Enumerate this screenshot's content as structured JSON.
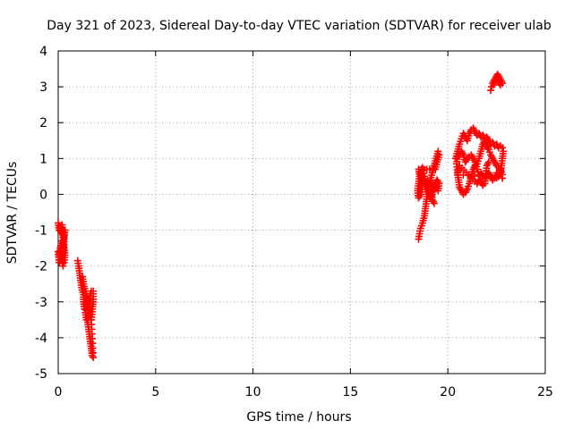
{
  "chart_data": {
    "type": "scatter",
    "title": "Day 321 of 2023, Sidereal Day-to-day VTEC variation (SDTVAR) for receiver ulab",
    "xlabel": "GPS time / hours",
    "ylabel": "SDTVAR / TECUs",
    "xlim": [
      0,
      25
    ],
    "ylim": [
      -5,
      4
    ],
    "xticks": [
      0,
      5,
      10,
      15,
      20,
      25
    ],
    "yticks": [
      -5,
      -4,
      -3,
      -2,
      -1,
      0,
      1,
      2,
      3,
      4
    ],
    "xtick_labels": [
      "0",
      "5",
      "10",
      "15",
      "20",
      "25"
    ],
    "ytick_labels": [
      "-5",
      "-4",
      "-3",
      "-2",
      "-1",
      "0",
      "1",
      "2",
      "3",
      "4"
    ],
    "grid": true,
    "marker": "plus",
    "series": [
      {
        "name": "SDTVAR",
        "color": "#ff0000",
        "segments": [
          [
            [
              0.0,
              -0.8
            ],
            [
              0.05,
              -1.0
            ],
            [
              0.1,
              -0.9
            ],
            [
              0.15,
              -1.1
            ],
            [
              0.2,
              -0.85
            ],
            [
              0.25,
              -1.2
            ],
            [
              0.3,
              -1.0
            ],
            [
              0.3,
              -1.4
            ],
            [
              0.25,
              -1.6
            ],
            [
              0.2,
              -1.8
            ],
            [
              0.25,
              -2.0
            ],
            [
              0.3,
              -1.9
            ],
            [
              0.35,
              -1.7
            ],
            [
              0.3,
              -1.5
            ],
            [
              0.2,
              -1.3
            ],
            [
              0.1,
              -1.5
            ],
            [
              0.05,
              -1.7
            ],
            [
              0.0,
              -1.6
            ],
            [
              0.05,
              -1.9
            ],
            [
              0.15,
              -1.7
            ],
            [
              0.2,
              -1.5
            ],
            [
              0.3,
              -1.2
            ],
            [
              0.35,
              -1.0
            ]
          ],
          [
            [
              1.0,
              -1.85
            ],
            [
              1.05,
              -2.0
            ],
            [
              1.1,
              -2.2
            ],
            [
              1.15,
              -2.4
            ],
            [
              1.2,
              -2.6
            ],
            [
              1.3,
              -2.8
            ],
            [
              1.3,
              -3.0
            ],
            [
              1.35,
              -3.2
            ],
            [
              1.4,
              -3.0
            ],
            [
              1.45,
              -2.9
            ],
            [
              1.5,
              -3.1
            ],
            [
              1.55,
              -3.3
            ],
            [
              1.5,
              -3.5
            ],
            [
              1.55,
              -3.7
            ],
            [
              1.6,
              -3.9
            ],
            [
              1.65,
              -4.1
            ],
            [
              1.7,
              -4.3
            ],
            [
              1.75,
              -4.5
            ],
            [
              1.8,
              -4.55
            ],
            [
              1.7,
              -3.5
            ],
            [
              1.75,
              -3.2
            ],
            [
              1.8,
              -3.0
            ],
            [
              1.8,
              -2.7
            ],
            [
              1.7,
              -2.7
            ],
            [
              1.6,
              -2.9
            ],
            [
              1.5,
              -3.0
            ],
            [
              1.4,
              -3.3
            ],
            [
              1.45,
              -3.5
            ],
            [
              1.6,
              -3.4
            ],
            [
              1.7,
              -3.2
            ],
            [
              1.4,
              -2.7
            ],
            [
              1.3,
              -2.5
            ],
            [
              1.25,
              -2.3
            ]
          ],
          [
            [
              18.5,
              -1.25
            ],
            [
              18.55,
              -1.1
            ],
            [
              18.6,
              -0.95
            ],
            [
              18.7,
              -0.8
            ],
            [
              18.8,
              -0.6
            ],
            [
              18.85,
              -0.4
            ],
            [
              18.9,
              -0.2
            ],
            [
              18.95,
              0.0
            ],
            [
              19.0,
              0.2
            ],
            [
              19.1,
              0.4
            ],
            [
              19.2,
              0.6
            ],
            [
              19.3,
              0.8
            ],
            [
              19.4,
              1.0
            ],
            [
              19.5,
              1.2
            ],
            [
              19.55,
              1.1
            ],
            [
              19.45,
              0.9
            ],
            [
              19.35,
              0.7
            ],
            [
              18.5,
              0.7
            ],
            [
              18.55,
              0.5
            ],
            [
              18.5,
              0.3
            ],
            [
              18.45,
              0.1
            ],
            [
              18.5,
              -0.1
            ],
            [
              18.6,
              0.0
            ],
            [
              18.7,
              0.2
            ],
            [
              18.65,
              0.4
            ],
            [
              18.6,
              0.6
            ],
            [
              18.7,
              0.75
            ],
            [
              18.8,
              0.5
            ],
            [
              18.9,
              0.3
            ],
            [
              19.0,
              0.1
            ],
            [
              19.1,
              -0.1
            ],
            [
              19.2,
              0.0
            ],
            [
              19.3,
              0.2
            ],
            [
              19.4,
              0.25
            ],
            [
              19.5,
              0.1
            ],
            [
              19.55,
              0.3
            ],
            [
              19.45,
              0.4
            ],
            [
              19.35,
              0.3
            ],
            [
              19.25,
              0.2
            ],
            [
              19.15,
              0.35
            ],
            [
              19.2,
              -0.15
            ],
            [
              19.3,
              -0.25
            ]
          ],
          [
            [
              20.4,
              1.0
            ],
            [
              20.5,
              1.2
            ],
            [
              20.6,
              1.4
            ],
            [
              20.7,
              1.55
            ],
            [
              20.8,
              1.7
            ],
            [
              20.9,
              1.6
            ],
            [
              21.0,
              1.5
            ],
            [
              21.1,
              1.7
            ],
            [
              21.2,
              1.8
            ],
            [
              21.3,
              1.85
            ],
            [
              21.4,
              1.75
            ],
            [
              21.5,
              1.65
            ],
            [
              21.6,
              1.7
            ],
            [
              21.7,
              1.6
            ],
            [
              21.8,
              1.65
            ],
            [
              21.9,
              1.55
            ],
            [
              22.0,
              1.6
            ],
            [
              22.1,
              1.5
            ],
            [
              22.2,
              1.4
            ],
            [
              22.3,
              1.45
            ],
            [
              22.4,
              1.35
            ],
            [
              22.5,
              1.4
            ],
            [
              22.6,
              1.3
            ],
            [
              22.7,
              1.35
            ],
            [
              22.8,
              1.3
            ],
            [
              22.85,
              1.2
            ],
            [
              22.8,
              1.0
            ],
            [
              22.75,
              0.8
            ],
            [
              22.7,
              0.6
            ],
            [
              22.6,
              0.5
            ],
            [
              22.5,
              0.6
            ],
            [
              22.4,
              0.45
            ],
            [
              22.3,
              0.4
            ],
            [
              22.2,
              0.5
            ],
            [
              22.1,
              0.6
            ],
            [
              22.0,
              0.5
            ],
            [
              21.9,
              0.45
            ],
            [
              21.8,
              0.5
            ],
            [
              21.7,
              0.6
            ],
            [
              21.6,
              0.55
            ],
            [
              21.5,
              0.7
            ],
            [
              21.4,
              0.9
            ],
            [
              21.3,
              1.0
            ],
            [
              21.2,
              1.1
            ],
            [
              21.1,
              1.05
            ],
            [
              21.0,
              1.0
            ],
            [
              20.9,
              0.9
            ],
            [
              20.8,
              1.1
            ],
            [
              20.7,
              1.2
            ],
            [
              20.6,
              1.1
            ],
            [
              20.5,
              1.05
            ],
            [
              20.45,
              0.85
            ],
            [
              20.5,
              0.6
            ],
            [
              20.55,
              0.4
            ],
            [
              20.6,
              0.2
            ],
            [
              20.7,
              0.1
            ],
            [
              20.8,
              0.0
            ],
            [
              20.9,
              0.05
            ],
            [
              21.0,
              0.15
            ],
            [
              21.1,
              0.3
            ],
            [
              21.2,
              0.5
            ],
            [
              21.3,
              0.7
            ],
            [
              21.4,
              0.8
            ],
            [
              21.5,
              0.85
            ],
            [
              21.6,
              1.0
            ],
            [
              21.7,
              1.2
            ],
            [
              21.8,
              1.4
            ],
            [
              21.9,
              1.5
            ],
            [
              22.0,
              1.35
            ],
            [
              22.1,
              1.25
            ],
            [
              22.2,
              1.1
            ],
            [
              22.3,
              1.0
            ],
            [
              22.4,
              0.9
            ],
            [
              22.5,
              0.8
            ],
            [
              22.6,
              0.75
            ],
            [
              22.7,
              0.7
            ],
            [
              22.8,
              0.55
            ],
            [
              22.8,
              0.45
            ],
            [
              20.5,
              0.55
            ],
            [
              20.6,
              0.8
            ],
            [
              21.5,
              0.3
            ],
            [
              21.6,
              0.4
            ],
            [
              21.7,
              0.35
            ],
            [
              21.8,
              0.25
            ],
            [
              21.9,
              0.3
            ],
            [
              22.0,
              0.8
            ],
            [
              22.1,
              0.9
            ]
          ],
          [
            [
              22.2,
              2.9
            ],
            [
              22.25,
              3.0
            ],
            [
              22.3,
              3.1
            ],
            [
              22.4,
              3.2
            ],
            [
              22.5,
              3.3
            ],
            [
              22.55,
              3.35
            ],
            [
              22.6,
              3.3
            ],
            [
              22.7,
              3.2
            ],
            [
              22.75,
              3.15
            ],
            [
              22.8,
              3.1
            ],
            [
              22.7,
              3.05
            ],
            [
              22.6,
              3.15
            ],
            [
              22.5,
              3.2
            ],
            [
              22.4,
              3.15
            ],
            [
              22.35,
              3.05
            ]
          ]
        ]
      }
    ]
  }
}
